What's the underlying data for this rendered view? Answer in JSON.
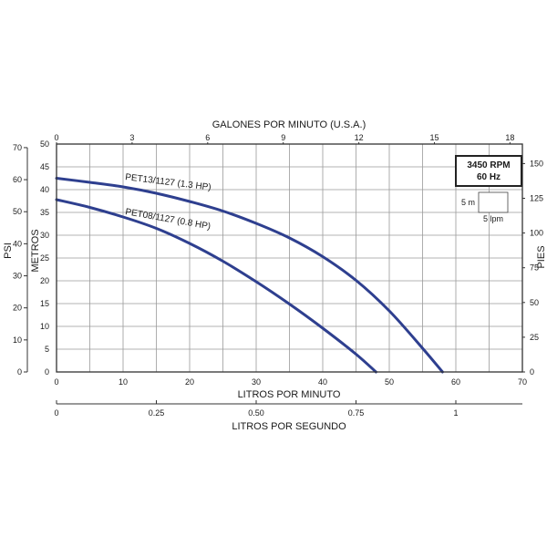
{
  "chart_data": {
    "type": "line",
    "title": "",
    "xlabel": "LITROS POR MINUTO",
    "ylabel": "METROS",
    "xlim": [
      0,
      70
    ],
    "ylim": [
      0,
      50
    ],
    "x_ticks": [
      "0",
      "10",
      "20",
      "30",
      "40",
      "50",
      "60",
      "70"
    ],
    "y_ticks": [
      "0",
      "5",
      "10",
      "15",
      "20",
      "25",
      "30",
      "35",
      "40",
      "45",
      "50"
    ],
    "grid": true,
    "secondary_axes": {
      "top": {
        "label": "GALONES POR MINUTO (U.S.A.)",
        "ticks": [
          "0",
          "3",
          "6",
          "9",
          "12",
          "15",
          "18"
        ]
      },
      "bottom2": {
        "label": "LITROS POR SEGUNDO",
        "ticks": [
          "0",
          "0.25",
          "0.50",
          "0.75",
          "1"
        ]
      },
      "left_outer": {
        "label": "PSI",
        "ticks": [
          "0",
          "10",
          "20",
          "30",
          "40",
          "50",
          "60",
          "70"
        ]
      },
      "right": {
        "label": "PIES",
        "ticks": [
          "0",
          "25",
          "50",
          "75",
          "100",
          "125",
          "150"
        ]
      }
    },
    "series": [
      {
        "name": "PET13/1127 (1.3 HP)",
        "color": "#2e3f8f",
        "x": [
          0,
          5,
          10,
          15,
          20,
          25,
          30,
          35,
          40,
          45,
          50,
          55,
          58
        ],
        "y": [
          42.5,
          41.6,
          40.6,
          39.2,
          37.4,
          35.3,
          32.6,
          29.4,
          25.3,
          20.1,
          13.4,
          5.2,
          0
        ]
      },
      {
        "name": "PET08/1127 (0.8 HP)",
        "color": "#2e3f8f",
        "x": [
          0,
          5,
          10,
          15,
          20,
          25,
          30,
          35,
          40,
          45,
          48
        ],
        "y": [
          37.8,
          36.1,
          34.0,
          31.5,
          28.2,
          24.3,
          19.8,
          14.9,
          9.6,
          3.9,
          0
        ]
      }
    ],
    "legend_box": {
      "rpm": "3450 RPM",
      "hz": "60 Hz",
      "scale_height": "5 m",
      "scale_width": "5 lpm"
    }
  }
}
